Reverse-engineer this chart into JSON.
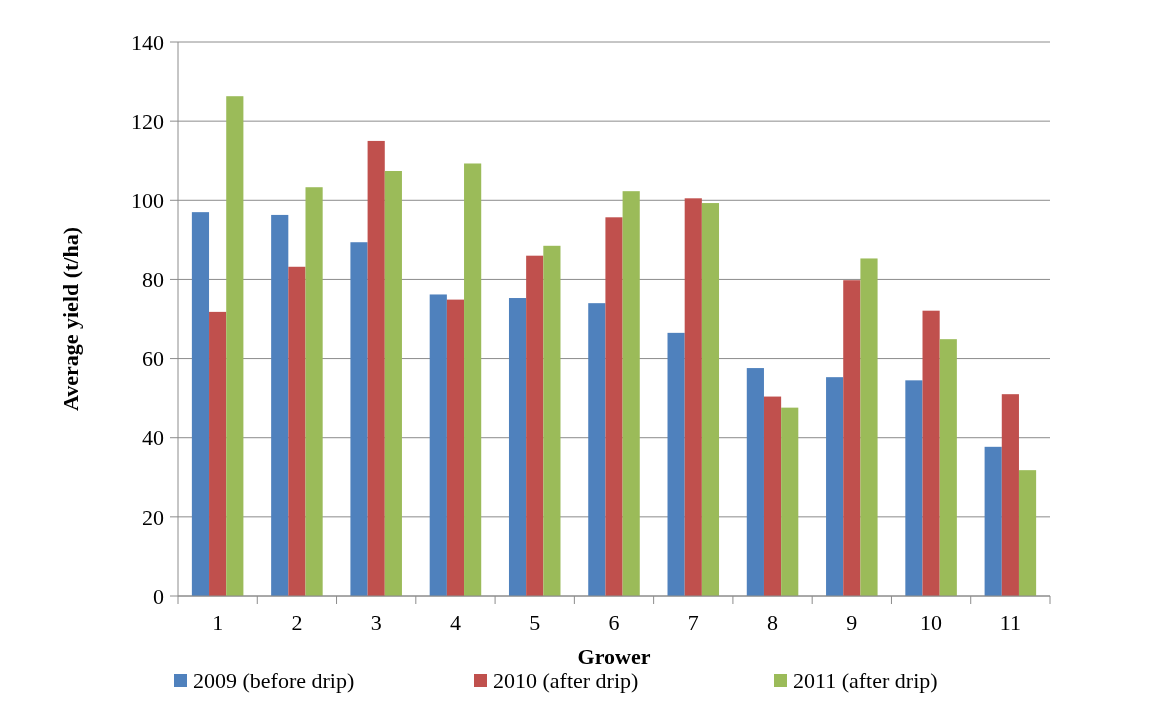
{
  "chart_data": {
    "type": "bar",
    "xlabel": "Grower",
    "ylabel": "Average yield (t/ha)",
    "categories": [
      "1",
      "2",
      "3",
      "4",
      "5",
      "6",
      "7",
      "8",
      "9",
      "10",
      "11"
    ],
    "series": [
      {
        "name": "2009 (before drip)",
        "color": "#4f81bd",
        "values": [
          97,
          96.3,
          89.4,
          76.2,
          75.3,
          74,
          66.5,
          57.6,
          55.3,
          54.5,
          37.7
        ]
      },
      {
        "name": "2010 (after drip)",
        "color": "#c0504d",
        "values": [
          71.8,
          83.2,
          115,
          74.9,
          86,
          95.7,
          100.5,
          50.4,
          79.8,
          72.1,
          51
        ]
      },
      {
        "name": "2011 (after drip)",
        "color": "#9bbb59",
        "values": [
          126.3,
          103.3,
          107.4,
          109.3,
          88.5,
          102.3,
          99.3,
          47.6,
          85.3,
          64.9,
          31.8
        ]
      }
    ],
    "ylim": [
      0,
      140
    ],
    "yticks": [
      0,
      20,
      40,
      60,
      80,
      100,
      120,
      140
    ],
    "grid": "y",
    "legend": "bottom"
  }
}
